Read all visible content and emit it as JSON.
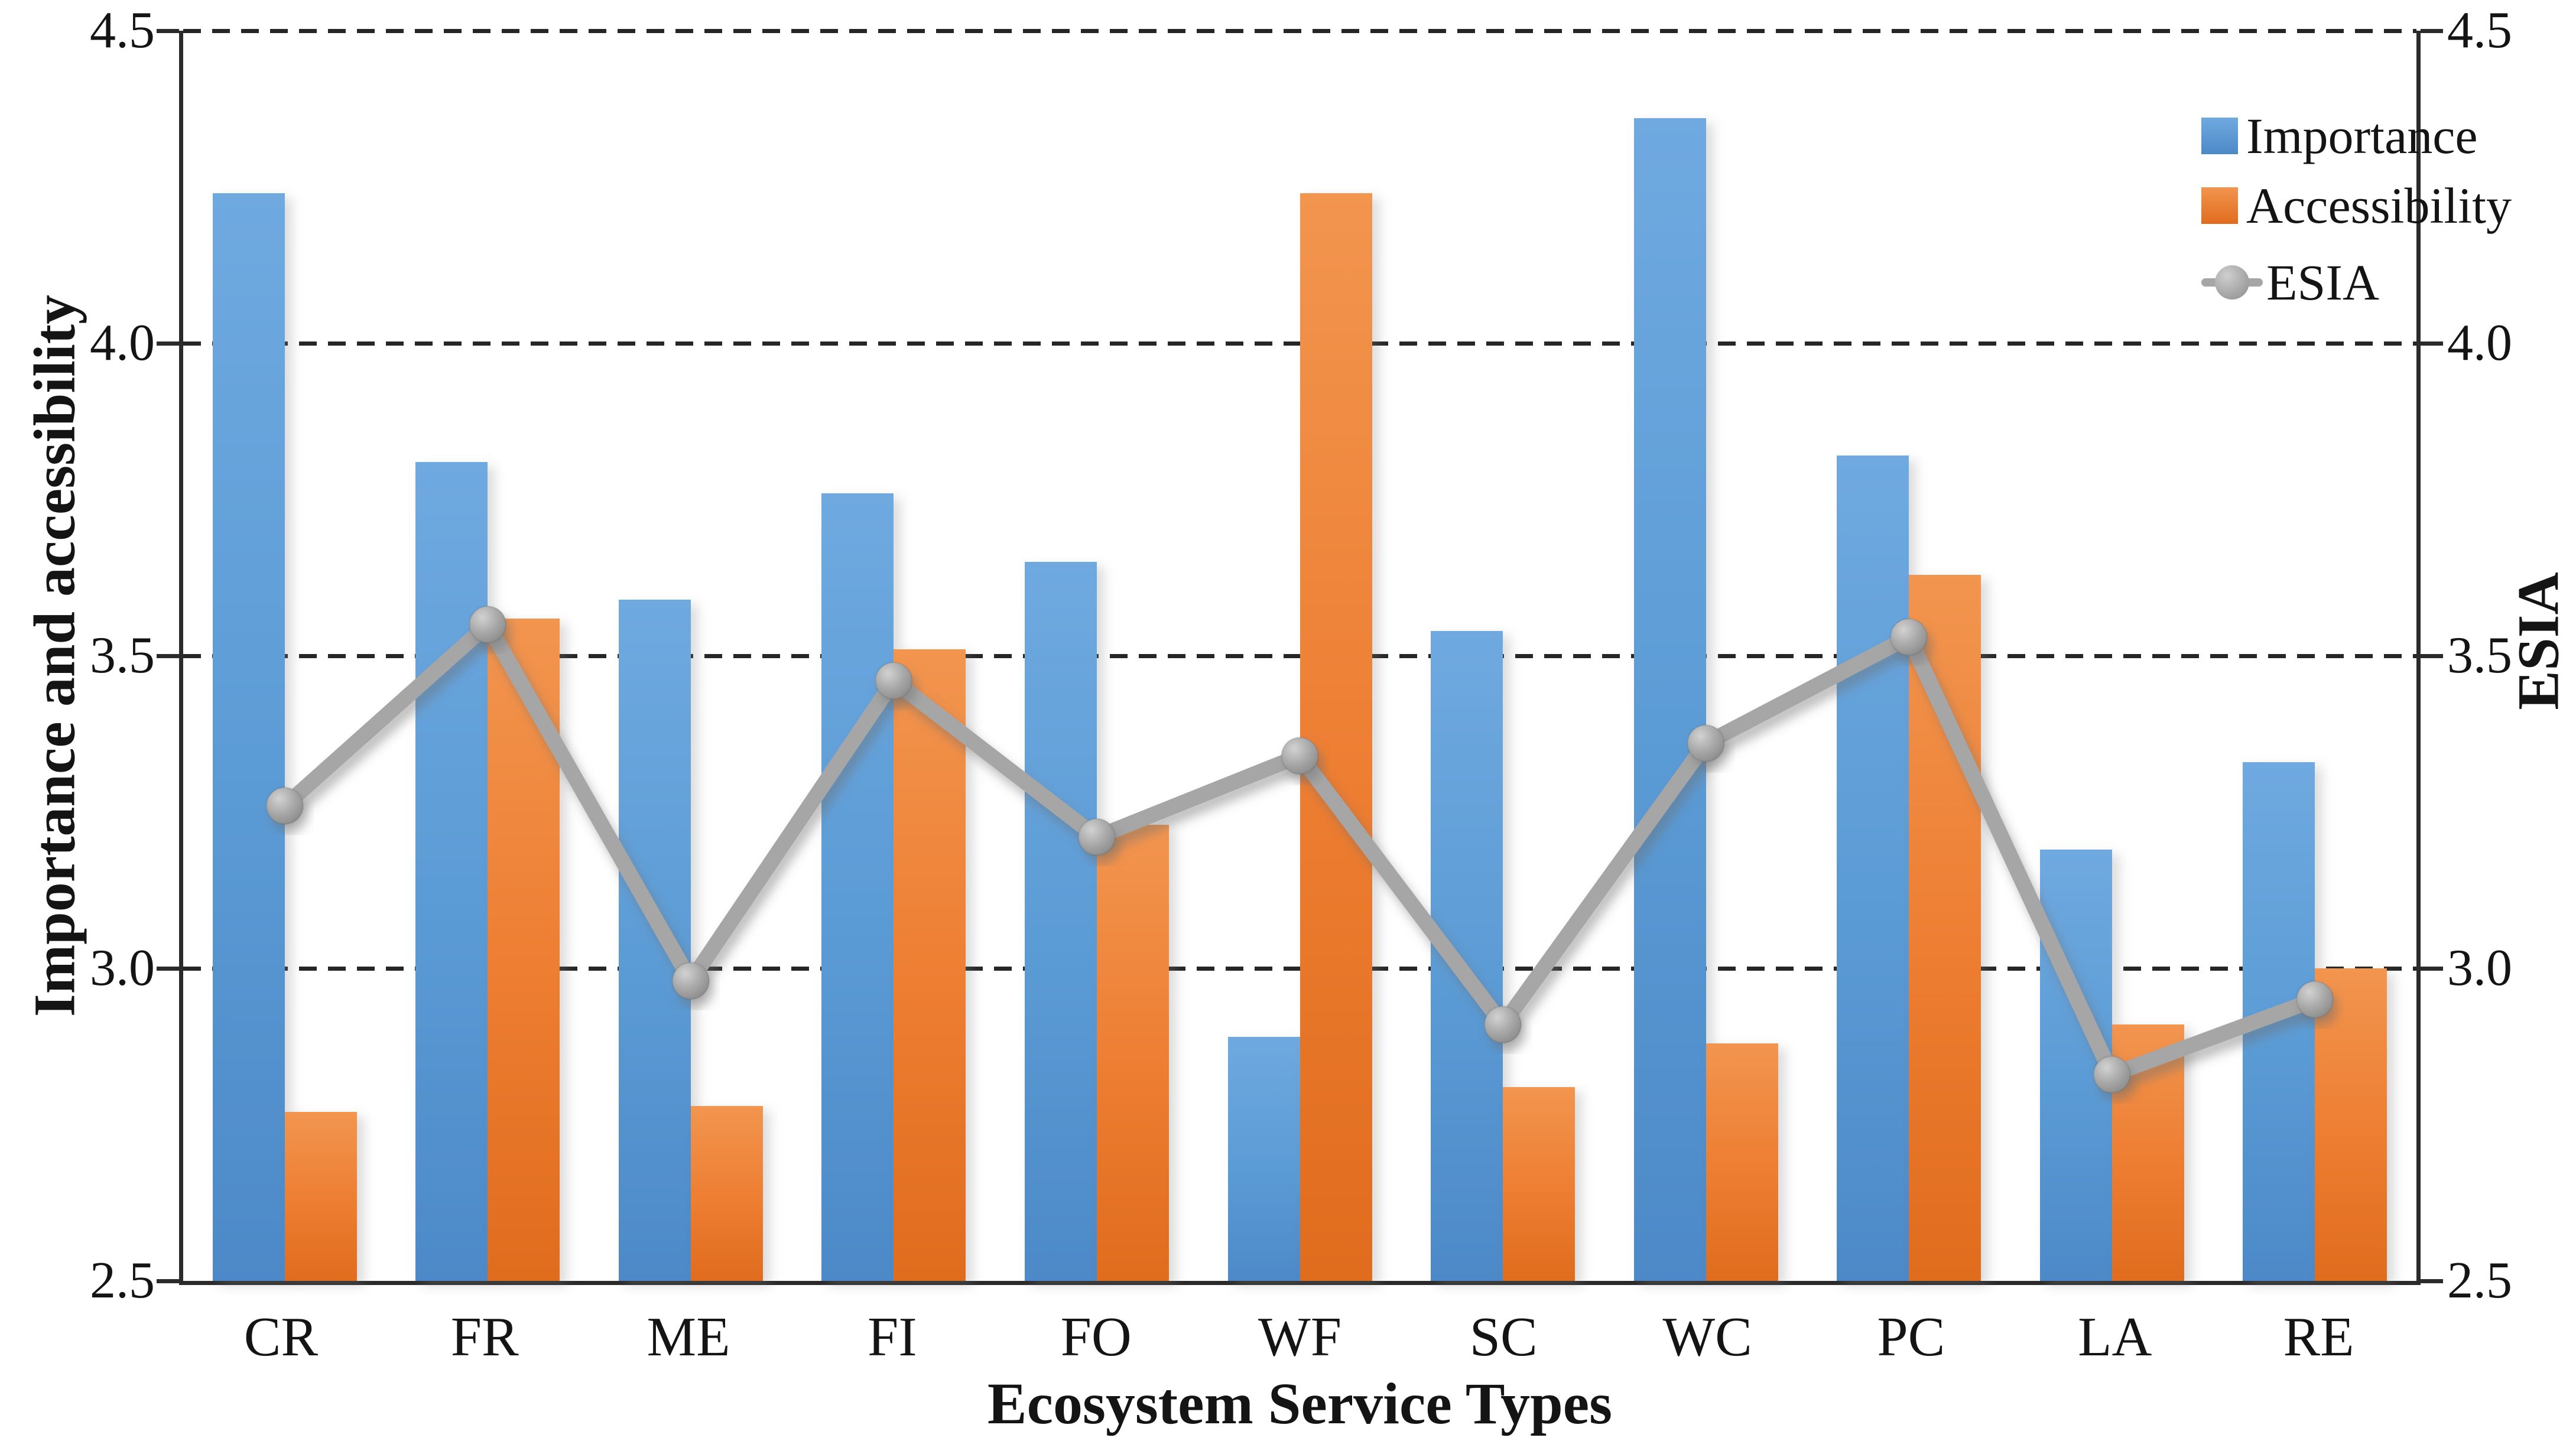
{
  "chart_data": {
    "type": "bar",
    "subtype": "grouped-bars-with-line-overlay",
    "title": "",
    "categories": [
      "CR",
      "FR",
      "ME",
      "FI",
      "FO",
      "WF",
      "SC",
      "WC",
      "PC",
      "LA",
      "RE"
    ],
    "series": [
      {
        "name": "Importance",
        "type": "bar",
        "color": "#5B9BD5",
        "values": [
          4.24,
          3.81,
          3.59,
          3.76,
          3.65,
          2.89,
          3.54,
          4.36,
          3.82,
          3.19,
          3.33
        ]
      },
      {
        "name": "Accessibility",
        "type": "bar",
        "color": "#ED7D31",
        "values": [
          2.77,
          3.56,
          2.78,
          3.51,
          3.23,
          4.24,
          2.81,
          2.88,
          3.63,
          2.91,
          3.0
        ]
      },
      {
        "name": "ESIA",
        "type": "line",
        "color": "#A6A6A6",
        "marker": "circle",
        "values": [
          3.26,
          3.55,
          2.98,
          3.46,
          3.21,
          3.34,
          2.91,
          3.36,
          3.53,
          2.83,
          2.95
        ]
      }
    ],
    "left_axis": {
      "title": "Importance and accessibility",
      "min": 2.5,
      "max": 4.5,
      "step": 0.5,
      "ticks": [
        "4.5",
        "4.0",
        "3.5",
        "3.0",
        "2.5"
      ]
    },
    "right_axis": {
      "title": "ESIA",
      "min": 2.5,
      "max": 4.5,
      "step": 0.5,
      "ticks": [
        "4.5",
        "4.0",
        "3.5",
        "3.0",
        "2.5"
      ]
    },
    "x_axis": {
      "title": "Ecosystem Service Types"
    },
    "grid": {
      "horizontal": true,
      "style": "dashed",
      "color": "#262626"
    },
    "legend_position": "inside-top-right"
  },
  "legend": {
    "importance_label": "Importance",
    "accessibility_label": "Accessibility",
    "esia_label": "ESIA"
  }
}
